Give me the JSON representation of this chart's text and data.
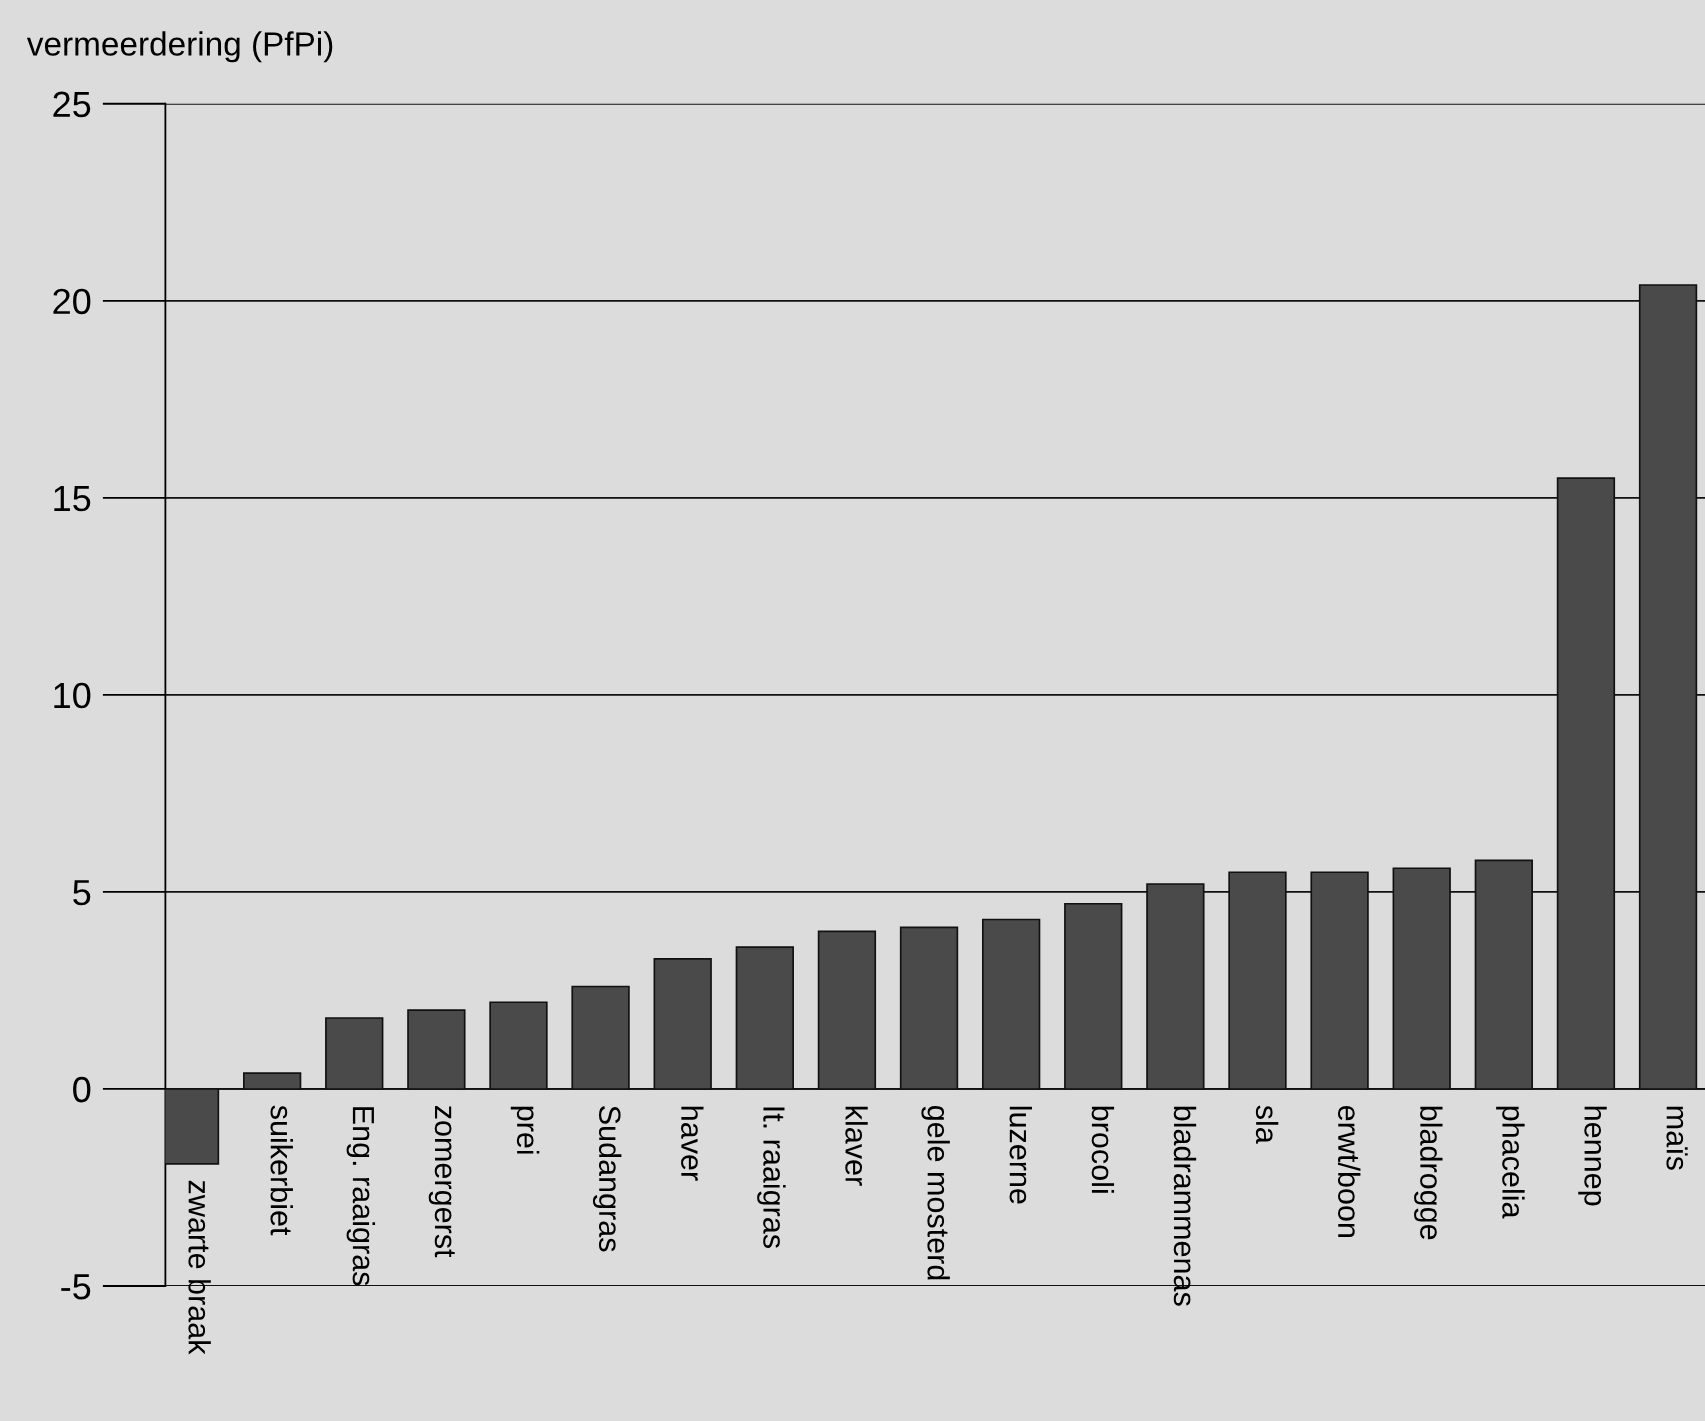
{
  "chart_data": {
    "type": "bar",
    "ylabel": "vermeerdering (PfPi)",
    "categories": [
      "zwarte braak",
      "suikerbiet",
      "Eng. raaigras",
      "zomergerst",
      "prei",
      "Sudangras",
      "haver",
      "It. raaigras",
      "klaver",
      "gele mosterd",
      "luzerne",
      "brocoli",
      "bladrammenas",
      "sla",
      "erwt/boon",
      "bladrogge",
      "phacelia",
      "hennep",
      "maïs"
    ],
    "values": [
      -1.9,
      0.4,
      1.8,
      2.0,
      2.2,
      2.6,
      3.3,
      3.6,
      4.0,
      4.1,
      4.3,
      4.7,
      5.2,
      5.5,
      5.5,
      5.6,
      5.8,
      15.5,
      20.4
    ],
    "color": "#4a4a4a",
    "ylim": [
      -5,
      25
    ],
    "yticks": [
      -5,
      0,
      5,
      10,
      15,
      20,
      25
    ],
    "grid": "y",
    "legend": false
  }
}
